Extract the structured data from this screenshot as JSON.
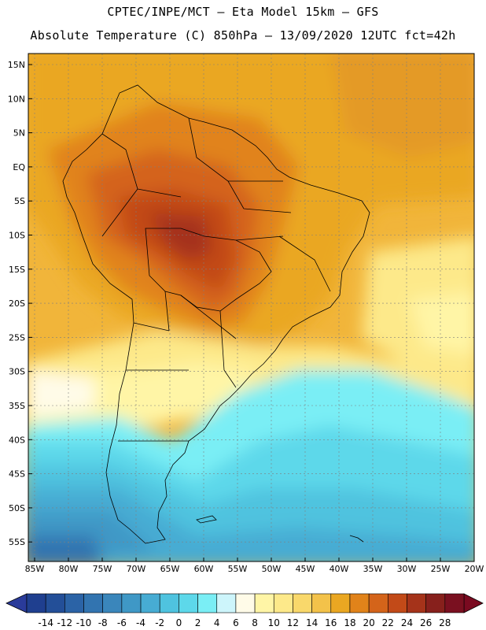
{
  "header": {
    "line1": "CPTEC/INPE/MCT –  Eta Model 15km – GFS",
    "line2": "Absolute Temperature (C) 850hPa – 13/09/2020 12UTC fct=42h"
  },
  "map": {
    "lat_labels": [
      "15N",
      "10N",
      "5N",
      "EQ",
      "5S",
      "10S",
      "15S",
      "20S",
      "25S",
      "30S",
      "35S",
      "40S",
      "45S",
      "50S",
      "55S"
    ],
    "lon_labels": [
      "85W",
      "80W",
      "75W",
      "70W",
      "65W",
      "60W",
      "55W",
      "50W",
      "45W",
      "40W",
      "35W",
      "30W",
      "25W",
      "20W"
    ]
  },
  "colorbar": {
    "labels": [
      "-14",
      "-12",
      "-10",
      "-8",
      "-6",
      "-4",
      "-2",
      "0",
      "2",
      "4",
      "6",
      "8",
      "10",
      "12",
      "14",
      "16",
      "18",
      "20",
      "22",
      "24",
      "26",
      "28"
    ],
    "colors": [
      "#1f3f8f",
      "#234f98",
      "#2b63a6",
      "#3274b0",
      "#3a86bb",
      "#3f98c6",
      "#47acd3",
      "#4fc3df",
      "#5dd8ea",
      "#7aeef5",
      "#cdf5fb",
      "#fffbe8",
      "#fff5a6",
      "#fde98a",
      "#f9d86b",
      "#f3c24a",
      "#eaa722",
      "#e1831a",
      "#d4641a",
      "#c24a18",
      "#a5331a",
      "#87201c",
      "#7a1020"
    ],
    "under_color": "#2a3b9a",
    "over_color": "#7a0a20"
  }
}
